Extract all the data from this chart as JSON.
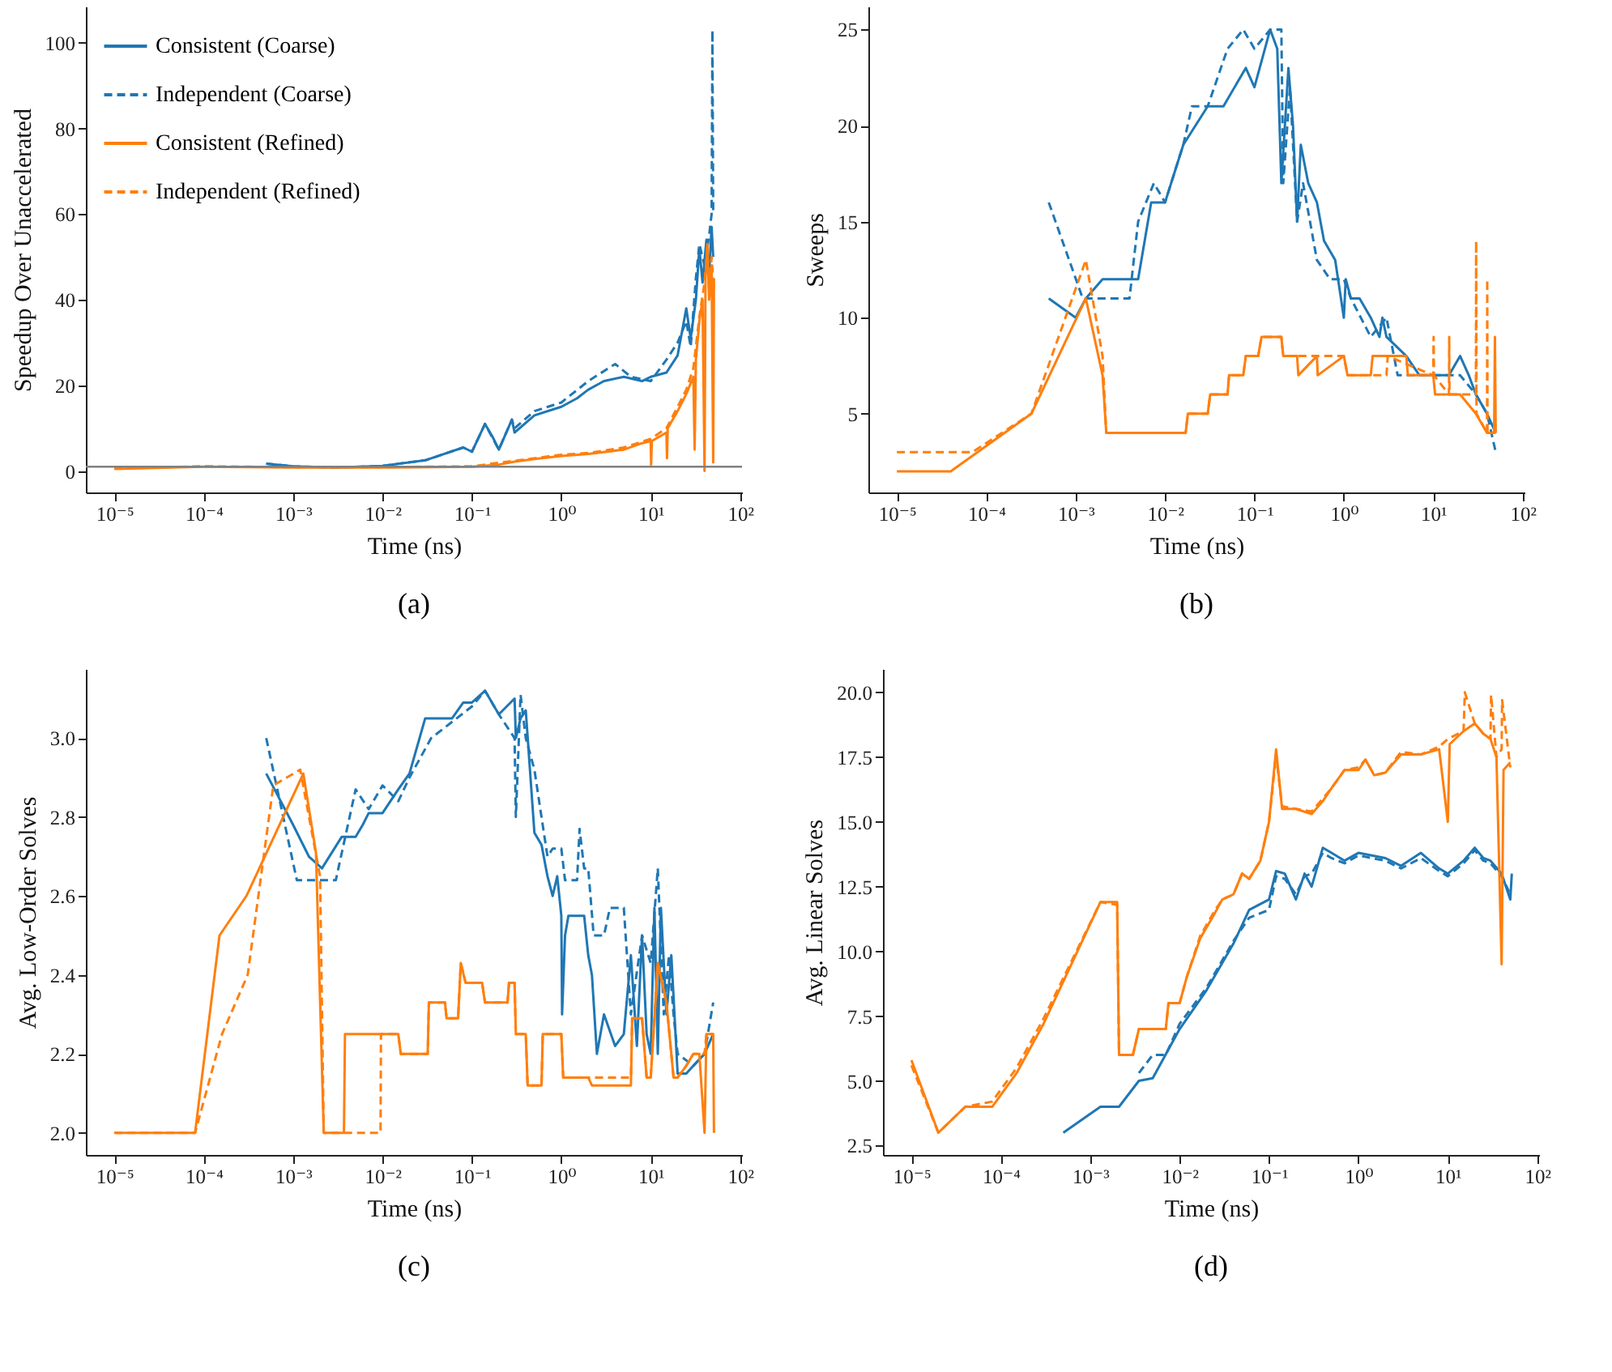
{
  "chart_data": [
    {
      "type": "line",
      "xlabel": "Time (ns)",
      "ylabel": "Speedup Over Unaccelerated",
      "annotations": [
        "(a)"
      ],
      "log": "x",
      "legend": "top left",
      "xlim": [
        4.8e-06,
        105
      ],
      "xticks": [
        {
          "value": 1e-05,
          "label": "10⁻⁵"
        },
        {
          "value": 0.0001,
          "label": "10⁻⁴"
        },
        {
          "value": 0.001,
          "label": "10⁻³"
        },
        {
          "value": 0.01,
          "label": "10⁻²"
        },
        {
          "value": 0.1,
          "label": "10⁻¹"
        },
        {
          "value": 1,
          "label": "10⁰"
        },
        {
          "value": 10,
          "label": "10¹"
        },
        {
          "value": 100,
          "label": "10²"
        }
      ],
      "ylim": [
        -5,
        108.5
      ],
      "yticks": [
        0,
        20,
        40,
        60,
        80,
        100
      ],
      "ref_lines": [
        {
          "axis": "y",
          "value": 1,
          "color": "#808080"
        }
      ],
      "series": [
        {
          "name": "Consistent (Coarse)",
          "color": "#1f77b4",
          "line_style": "solid",
          "x": [
            0.0005,
            0.001,
            0.003,
            0.01,
            0.03,
            0.08,
            0.1,
            0.14,
            0.17,
            0.2,
            0.28,
            0.3,
            0.5,
            1,
            1.5,
            2,
            3,
            5,
            8,
            10,
            15,
            20,
            25,
            28,
            32,
            35,
            38,
            42,
            45,
            48,
            50
          ],
          "values": [
            1.7,
            1.1,
            0.8,
            1.2,
            2.5,
            5.5,
            4.5,
            11,
            8,
            5,
            12,
            9,
            13,
            15,
            17,
            19,
            21,
            22,
            21,
            22,
            23,
            27,
            38,
            31,
            40,
            52,
            44,
            54,
            46,
            57,
            50
          ]
        },
        {
          "name": "Independent (Coarse)",
          "color": "#1f77b4",
          "line_style": "dashed",
          "x": [
            0.0005,
            0.001,
            0.003,
            0.01,
            0.03,
            0.08,
            0.1,
            0.14,
            0.2,
            0.28,
            0.3,
            0.5,
            1,
            2,
            4,
            6,
            10,
            15,
            20,
            25,
            28,
            32,
            35,
            40,
            45,
            48,
            49,
            50
          ],
          "values": [
            1.7,
            1.1,
            0.8,
            1.2,
            2.5,
            5.5,
            4.5,
            11,
            5,
            12,
            10,
            14,
            16,
            21,
            25,
            22,
            21,
            26,
            30,
            35,
            29,
            45,
            53,
            48,
            55,
            60,
            103,
            60
          ]
        },
        {
          "name": "Consistent (Refined)",
          "color": "#ff7f0e",
          "line_style": "solid",
          "x": [
            1e-05,
            0.0001,
            0.001,
            0.01,
            0.1,
            0.2,
            0.3,
            0.5,
            1,
            2,
            5,
            8,
            10,
            10.1,
            10.3,
            15,
            15.2,
            15.5,
            20,
            25,
            30,
            31,
            32,
            35,
            38,
            40,
            41,
            43,
            45,
            48,
            50,
            51
          ],
          "values": [
            0.5,
            1,
            0.8,
            0.8,
            1,
            1.5,
            2.2,
            2.8,
            3.5,
            4,
            5,
            6.5,
            7,
            1.5,
            7,
            9,
            3,
            10,
            14,
            18,
            22,
            5,
            26,
            35,
            40,
            0,
            45,
            53,
            40,
            48,
            2,
            45
          ]
        },
        {
          "name": "Independent (Refined)",
          "color": "#ff7f0e",
          "line_style": "dashed",
          "x": [
            1e-05,
            0.0001,
            0.001,
            0.01,
            0.1,
            0.3,
            1,
            2,
            5,
            10,
            15,
            20,
            25,
            30,
            35,
            40,
            43,
            45,
            48,
            50
          ],
          "values": [
            0.6,
            1.1,
            0.9,
            0.9,
            1.1,
            2.4,
            3.8,
            4.2,
            5.5,
            7.5,
            10,
            15,
            19,
            24,
            36,
            44,
            52,
            42,
            50,
            44
          ]
        }
      ]
    },
    {
      "type": "line",
      "xlabel": "Time (ns)",
      "ylabel": "Sweeps",
      "annotations": [
        "(b)"
      ],
      "log": "x",
      "xlim": [
        4.8e-06,
        105
      ],
      "xticks": [
        {
          "value": 1e-05,
          "label": "10⁻⁵"
        },
        {
          "value": 0.0001,
          "label": "10⁻⁴"
        },
        {
          "value": 0.001,
          "label": "10⁻³"
        },
        {
          "value": 0.01,
          "label": "10⁻²"
        },
        {
          "value": 0.1,
          "label": "10⁻¹"
        },
        {
          "value": 1,
          "label": "10⁰"
        },
        {
          "value": 10,
          "label": "10¹"
        },
        {
          "value": 100,
          "label": "10²"
        }
      ],
      "ylim": [
        0.9,
        26.2
      ],
      "yticks": [
        5,
        10,
        15,
        20,
        25
      ],
      "series": [
        {
          "color": "#1f77b4",
          "line_style": "solid",
          "x": [
            0.0005,
            0.001,
            0.0013,
            0.002,
            0.005,
            0.007,
            0.01,
            0.016,
            0.03,
            0.045,
            0.08,
            0.1,
            0.15,
            0.18,
            0.2,
            0.24,
            0.27,
            0.3,
            0.33,
            0.4,
            0.5,
            0.6,
            0.8,
            1,
            1.05,
            1.2,
            1.5,
            2,
            2.5,
            2.7,
            3,
            5,
            7,
            15,
            20,
            25,
            30,
            40,
            50
          ],
          "values": [
            11,
            10,
            11,
            12,
            12,
            16,
            16,
            19,
            21,
            21,
            23,
            22,
            25,
            24,
            17,
            23,
            20,
            15,
            19,
            17,
            16,
            14,
            13,
            10,
            12,
            11,
            11,
            10,
            9,
            10,
            9,
            8,
            7,
            7,
            8,
            7,
            6,
            5,
            4
          ]
        },
        {
          "color": "#1f77b4",
          "line_style": "dashed",
          "x": [
            0.0005,
            0.0012,
            0.004,
            0.005,
            0.0075,
            0.01,
            0.016,
            0.02,
            0.03,
            0.05,
            0.075,
            0.1,
            0.15,
            0.2,
            0.21,
            0.25,
            0.3,
            0.35,
            0.5,
            0.7,
            1,
            1.2,
            2,
            3,
            4,
            10,
            20,
            30,
            40,
            50
          ],
          "values": [
            16,
            11,
            11,
            15,
            17,
            16,
            19,
            21,
            21,
            24,
            25,
            24,
            25,
            25,
            17,
            22,
            15,
            17,
            13,
            12,
            12,
            11,
            9,
            10,
            7,
            7,
            7,
            6,
            5,
            3
          ]
        },
        {
          "color": "#ff7f0e",
          "line_style": "solid",
          "x": [
            1e-05,
            4e-05,
            0.00032,
            0.0013,
            0.002,
            0.0022,
            0.017,
            0.018,
            0.03,
            0.032,
            0.05,
            0.052,
            0.075,
            0.08,
            0.11,
            0.12,
            0.2,
            0.21,
            0.3,
            0.31,
            0.5,
            0.51,
            1,
            1.1,
            2,
            2.1,
            5,
            5.2,
            10,
            10.5,
            20,
            30,
            40,
            48,
            49,
            50
          ],
          "values": [
            2,
            2,
            5,
            11,
            7,
            4,
            4,
            5,
            5,
            6,
            6,
            7,
            7,
            8,
            8,
            9,
            9,
            8,
            8,
            7,
            8,
            7,
            8,
            7,
            7,
            8,
            8,
            7,
            7,
            6,
            6,
            5,
            4,
            4,
            9,
            4
          ]
        },
        {
          "color": "#ff7f0e",
          "line_style": "dashed",
          "x": [
            1e-05,
            7e-05,
            0.00032,
            0.0013,
            0.002,
            0.0022,
            0.017,
            0.018,
            0.03,
            0.032,
            0.05,
            0.052,
            0.075,
            0.08,
            0.11,
            0.12,
            0.2,
            0.21,
            1,
            1.1,
            3,
            3.1,
            10,
            10.1,
            10.2,
            15,
            15.1,
            15.2,
            30,
            30.2,
            30.5,
            40,
            40.2,
            40.5,
            50
          ],
          "values": [
            3,
            3,
            5,
            13,
            8,
            4,
            4,
            5,
            5,
            6,
            6,
            7,
            7,
            8,
            8,
            9,
            9,
            8,
            8,
            7,
            7,
            8,
            7,
            9,
            7,
            6,
            9,
            6,
            6,
            14,
            5,
            4,
            12,
            4,
            4
          ]
        }
      ]
    },
    {
      "type": "line",
      "xlabel": "Time (ns)",
      "ylabel": "Avg. Low-Order Solves",
      "annotations": [
        "(c)"
      ],
      "log": "x",
      "xlim": [
        4.8e-06,
        105
      ],
      "xticks": [
        {
          "value": 1e-05,
          "label": "10⁻⁵"
        },
        {
          "value": 0.0001,
          "label": "10⁻⁴"
        },
        {
          "value": 0.001,
          "label": "10⁻³"
        },
        {
          "value": 0.01,
          "label": "10⁻²"
        },
        {
          "value": 0.1,
          "label": "10⁻¹"
        },
        {
          "value": 1,
          "label": "10⁰"
        },
        {
          "value": 10,
          "label": "10¹"
        },
        {
          "value": 100,
          "label": "10²"
        }
      ],
      "ylim": [
        1.944,
        3.175
      ],
      "yticks": [
        {
          "value": 2,
          "label": "2.0"
        },
        {
          "value": 2.2,
          "label": "2.2"
        },
        {
          "value": 2.4,
          "label": "2.4"
        },
        {
          "value": 2.6,
          "label": "2.6"
        },
        {
          "value": 2.8,
          "label": "2.8"
        },
        {
          "value": 3,
          "label": "3.0"
        }
      ],
      "series": [
        {
          "color": "#1f77b4",
          "line_style": "solid",
          "x": [
            0.0005,
            0.001,
            0.0015,
            0.0021,
            0.0035,
            0.005,
            0.006,
            0.007,
            0.01,
            0.015,
            0.02,
            0.03,
            0.06,
            0.08,
            0.1,
            0.14,
            0.2,
            0.3,
            0.31,
            0.35,
            0.4,
            0.5,
            0.6,
            0.7,
            0.8,
            0.9,
            1,
            1.02,
            1.1,
            1.2,
            1.8,
            2,
            2.2,
            2.5,
            3,
            4,
            5,
            6,
            7,
            8,
            9,
            10,
            11,
            12,
            13,
            15,
            17,
            20,
            25,
            30,
            40,
            50
          ],
          "values": [
            2.91,
            2.78,
            2.7,
            2.67,
            2.75,
            2.75,
            2.78,
            2.81,
            2.81,
            2.87,
            2.91,
            3.05,
            3.05,
            3.09,
            3.09,
            3.12,
            3.06,
            3.1,
            3,
            3.05,
            3.07,
            2.76,
            2.73,
            2.65,
            2.6,
            2.65,
            2.55,
            2.3,
            2.5,
            2.55,
            2.55,
            2.45,
            2.4,
            2.2,
            2.3,
            2.22,
            2.25,
            2.45,
            2.22,
            2.5,
            2.25,
            2.2,
            2.57,
            2.2,
            2.57,
            2.3,
            2.45,
            2.15,
            2.15,
            2.17,
            2.2,
            2.25
          ]
        },
        {
          "color": "#1f77b4",
          "line_style": "dashed",
          "x": [
            0.0005,
            0.0011,
            0.003,
            0.005,
            0.007,
            0.01,
            0.015,
            0.02,
            0.035,
            0.1,
            0.14,
            0.2,
            0.3,
            0.31,
            0.35,
            0.4,
            0.5,
            0.6,
            0.7,
            0.8,
            1,
            1.1,
            1.5,
            1.6,
            1.8,
            2,
            2.3,
            3,
            3.5,
            5,
            6,
            8,
            10,
            12,
            14,
            16,
            18,
            20,
            30,
            40,
            50
          ],
          "values": [
            3,
            2.64,
            2.64,
            2.87,
            2.82,
            2.88,
            2.84,
            2.9,
            3,
            3.08,
            3.12,
            3.06,
            3,
            2.8,
            3.11,
            3,
            2.92,
            2.8,
            2.7,
            2.72,
            2.72,
            2.64,
            2.64,
            2.77,
            2.67,
            2.67,
            2.5,
            2.5,
            2.57,
            2.57,
            2.3,
            2.5,
            2.43,
            2.67,
            2.3,
            2.45,
            2.3,
            2.2,
            2.17,
            2.2,
            2.33
          ]
        },
        {
          "color": "#ff7f0e",
          "line_style": "solid",
          "x": [
            1e-05,
            8e-05,
            0.00015,
            0.0003,
            0.0013,
            0.0018,
            0.0022,
            0.0037,
            0.0038,
            0.015,
            0.016,
            0.032,
            0.033,
            0.05,
            0.052,
            0.07,
            0.075,
            0.085,
            0.13,
            0.14,
            0.25,
            0.26,
            0.3,
            0.31,
            0.4,
            0.42,
            0.6,
            0.62,
            1,
            1.05,
            2,
            2.2,
            6,
            6.2,
            8,
            9,
            10,
            11,
            12,
            15,
            18,
            20,
            25,
            30,
            35,
            40,
            42,
            50,
            51
          ],
          "values": [
            2,
            2,
            2.5,
            2.6,
            2.91,
            2.71,
            2,
            2,
            2.25,
            2.25,
            2.2,
            2.2,
            2.33,
            2.33,
            2.29,
            2.29,
            2.43,
            2.38,
            2.38,
            2.33,
            2.33,
            2.38,
            2.38,
            2.25,
            2.25,
            2.12,
            2.12,
            2.25,
            2.25,
            2.14,
            2.14,
            2.12,
            2.12,
            2.29,
            2.29,
            2.14,
            2.14,
            2.29,
            2.43,
            2.33,
            2.14,
            2.14,
            2.17,
            2.2,
            2.2,
            2,
            2.25,
            2.25,
            2
          ]
        },
        {
          "color": "#ff7f0e",
          "line_style": "dashed",
          "x": [
            1e-05,
            8e-05,
            0.00016,
            0.00031,
            0.0006,
            0.0012,
            0.002,
            0.0022,
            0.0095,
            0.0096,
            0.015,
            0.016,
            0.032,
            0.033,
            0.05,
            0.052,
            0.07,
            0.075,
            0.085,
            0.13,
            0.14,
            0.25,
            0.26,
            0.3,
            0.31,
            0.4,
            0.42,
            0.6,
            0.62,
            1,
            1.05,
            2,
            2.2,
            6,
            6.2,
            8,
            9,
            10,
            11,
            12,
            15,
            18,
            20,
            25,
            30,
            35,
            40,
            42,
            50
          ],
          "values": [
            2,
            2,
            2.25,
            2.4,
            2.88,
            2.92,
            2.65,
            2,
            2,
            2.25,
            2.25,
            2.2,
            2.2,
            2.33,
            2.33,
            2.29,
            2.29,
            2.43,
            2.38,
            2.38,
            2.33,
            2.33,
            2.38,
            2.38,
            2.25,
            2.25,
            2.12,
            2.12,
            2.25,
            2.25,
            2.14,
            2.14,
            2.14,
            2.14,
            2.29,
            2.29,
            2.14,
            2.14,
            2.29,
            2.43,
            2.33,
            2.14,
            2.14,
            2.17,
            2.2,
            2.2,
            2.2,
            2.25,
            2.25
          ]
        }
      ]
    },
    {
      "type": "line",
      "xlabel": "Time (ns)",
      "ylabel": "Avg. Linear Solves",
      "annotations": [
        "(d)"
      ],
      "log": "x",
      "xlim": [
        4.8e-06,
        105
      ],
      "xticks": [
        {
          "value": 1e-05,
          "label": "10⁻⁵"
        },
        {
          "value": 0.0001,
          "label": "10⁻⁴"
        },
        {
          "value": 0.001,
          "label": "10⁻³"
        },
        {
          "value": 0.01,
          "label": "10⁻²"
        },
        {
          "value": 0.1,
          "label": "10⁻¹"
        },
        {
          "value": 1,
          "label": "10⁰"
        },
        {
          "value": 10,
          "label": "10¹"
        },
        {
          "value": 100,
          "label": "10²"
        }
      ],
      "ylim": [
        2.14,
        20.9
      ],
      "yticks": [
        {
          "value": 2.5,
          "label": "2.5"
        },
        {
          "value": 5,
          "label": "5.0"
        },
        {
          "value": 7.5,
          "label": "7.5"
        },
        {
          "value": 10,
          "label": "10.0"
        },
        {
          "value": 12.5,
          "label": "12.5"
        },
        {
          "value": 15,
          "label": "15.0"
        },
        {
          "value": 17.5,
          "label": "17.5"
        },
        {
          "value": 20,
          "label": "20.0"
        }
      ],
      "series": [
        {
          "color": "#1f77b4",
          "line_style": "solid",
          "x": [
            0.0005,
            0.0013,
            0.0021,
            0.0035,
            0.005,
            0.01,
            0.02,
            0.04,
            0.06,
            0.1,
            0.12,
            0.15,
            0.2,
            0.25,
            0.3,
            0.4,
            0.5,
            0.7,
            1,
            2,
            3,
            5,
            8,
            10,
            15,
            20,
            25,
            30,
            40,
            50,
            52
          ],
          "values": [
            3,
            4,
            4,
            5,
            5.1,
            7,
            8.5,
            10.3,
            11.6,
            12,
            13.1,
            13,
            12,
            13,
            12.5,
            14,
            13.8,
            13.5,
            13.8,
            13.6,
            13.3,
            13.8,
            13.2,
            13,
            13.5,
            14,
            13.6,
            13.5,
            13,
            12,
            13
          ]
        },
        {
          "color": "#1f77b4",
          "line_style": "dashed",
          "x": [
            0.0035,
            0.005,
            0.007,
            0.01,
            0.02,
            0.04,
            0.06,
            0.1,
            0.12,
            0.15,
            0.2,
            0.25,
            0.3,
            0.4,
            0.5,
            0.7,
            1,
            2,
            3,
            5,
            8,
            10,
            15,
            20,
            25,
            30,
            40,
            50
          ],
          "values": [
            5.3,
            6,
            6,
            7.2,
            8.6,
            10.4,
            11.3,
            11.6,
            12.9,
            12.8,
            12.2,
            12.9,
            13,
            13.8,
            13.6,
            13.4,
            13.7,
            13.5,
            13.2,
            13.6,
            13.1,
            12.9,
            13.4,
            13.9,
            13.5,
            13.4,
            12.9,
            12.2
          ]
        },
        {
          "color": "#ff7f0e",
          "line_style": "solid",
          "x": [
            1e-05,
            2e-05,
            4e-05,
            8e-05,
            0.00015,
            0.0003,
            0.0013,
            0.002,
            0.0021,
            0.003,
            0.0035,
            0.007,
            0.0075,
            0.01,
            0.012,
            0.017,
            0.025,
            0.03,
            0.04,
            0.05,
            0.06,
            0.08,
            0.1,
            0.12,
            0.14,
            0.2,
            0.3,
            0.4,
            0.5,
            0.7,
            1,
            1.2,
            1.5,
            2,
            3,
            5,
            8,
            10,
            10.5,
            15,
            20,
            25,
            30,
            35,
            40,
            42,
            50
          ],
          "values": [
            5.8,
            3,
            4,
            4,
            5.3,
            7.2,
            11.9,
            11.9,
            6,
            6,
            7,
            7,
            8,
            8,
            9,
            10.5,
            11.5,
            12,
            12.2,
            13,
            12.8,
            13.5,
            15,
            17.8,
            15.5,
            15.5,
            15.3,
            15.8,
            16.3,
            17,
            17,
            17.4,
            16.8,
            16.9,
            17.6,
            17.6,
            17.8,
            15,
            18,
            18.5,
            18.8,
            18.4,
            18.2,
            17.5,
            9.5,
            17,
            17.3
          ]
        },
        {
          "color": "#ff7f0e",
          "line_style": "dashed",
          "x": [
            1e-05,
            2e-05,
            4e-05,
            8e-05,
            0.00015,
            0.0003,
            0.0013,
            0.002,
            0.0021,
            0.003,
            0.0035,
            0.007,
            0.0075,
            0.01,
            0.012,
            0.017,
            0.025,
            0.03,
            0.04,
            0.05,
            0.06,
            0.08,
            0.1,
            0.12,
            0.14,
            0.2,
            0.3,
            0.4,
            0.5,
            0.7,
            1,
            1.2,
            1.5,
            2,
            3,
            5,
            8,
            10,
            15,
            15.5,
            20,
            25,
            30,
            30.5,
            35,
            40,
            40.5,
            50
          ],
          "values": [
            5.6,
            3,
            4,
            4.2,
            5.5,
            7.4,
            11.9,
            11.8,
            6,
            6,
            7,
            7,
            8,
            8,
            9,
            10.6,
            11.6,
            12,
            12.2,
            13,
            12.8,
            13.5,
            15,
            17.6,
            15.6,
            15.5,
            15.4,
            15.9,
            16.3,
            17,
            17.1,
            17.4,
            16.8,
            16.9,
            17.7,
            17.6,
            17.9,
            18.2,
            18.5,
            20,
            18.8,
            18.4,
            18.2,
            19.9,
            17.5,
            17.8,
            19.7,
            17.1
          ]
        }
      ]
    }
  ]
}
